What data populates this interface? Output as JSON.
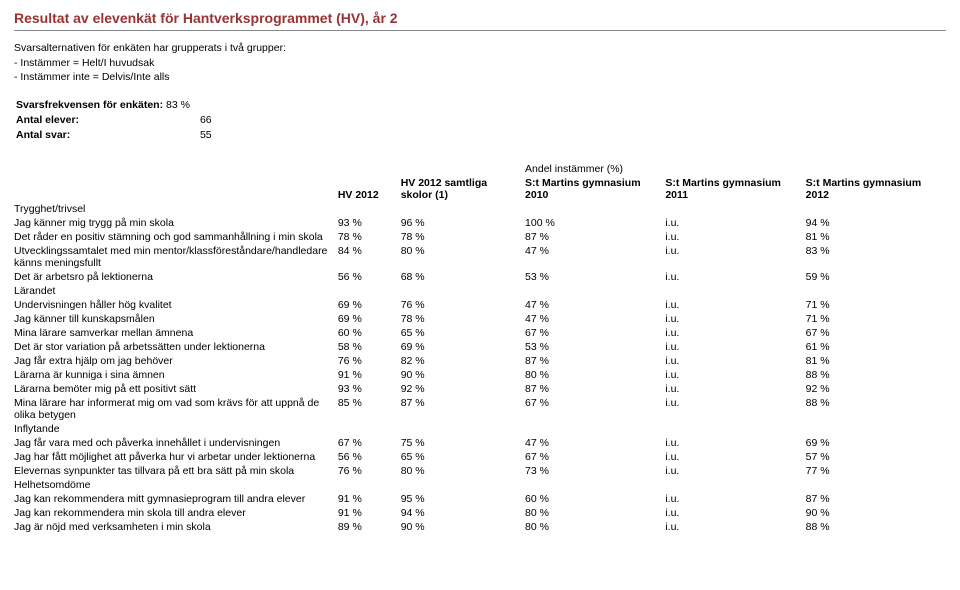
{
  "title": "Resultat av elevenkät för Hantverksprogrammet (HV), år 2",
  "intro": {
    "line1": "Svarsalternativen för enkäten har grupperats i två grupper:",
    "line2": "- Instämmer = Helt/I huvudsak",
    "line3": "- Instämmer inte = Delvis/Inte alls"
  },
  "stats": {
    "resp_label": "Svarsfrekvensen för enkäten:",
    "resp_val": "83 %",
    "elever_label": "Antal elever:",
    "elever_val": "66",
    "svar_label": "Antal svar:",
    "svar_val": "55"
  },
  "table": {
    "super_header": "Andel instämmer (%)",
    "columns": [
      "HV 2012",
      "HV 2012 samtliga skolor (1)",
      "S:t Martins gymnasium 2010",
      "S:t Martins gymnasium 2011",
      "S:t Martins gymnasium 2012"
    ],
    "sections": [
      {
        "title": "Trygghet/trivsel",
        "rows": [
          {
            "label": "Jag känner mig trygg på min skola",
            "v": [
              "93 %",
              "96 %",
              "100 %",
              "i.u.",
              "94 %"
            ]
          },
          {
            "label": "Det råder en positiv stämning och god sammanhållning i min skola",
            "v": [
              "78 %",
              "78 %",
              "87 %",
              "i.u.",
              "81 %"
            ]
          },
          {
            "label": "Utvecklingssamtalet med min mentor/klassföreståndare/handledare känns meningsfullt",
            "v": [
              "84 %",
              "80 %",
              "47 %",
              "i.u.",
              "83 %"
            ]
          },
          {
            "label": "Det är arbetsro på lektionerna",
            "v": [
              "56 %",
              "68 %",
              "53 %",
              "i.u.",
              "59 %"
            ]
          }
        ]
      },
      {
        "title": "Lärandet",
        "rows": [
          {
            "label": "Undervisningen håller hög kvalitet",
            "v": [
              "69 %",
              "76 %",
              "47 %",
              "i.u.",
              "71 %"
            ]
          },
          {
            "label": "Jag känner till kunskapsmålen",
            "v": [
              "69 %",
              "78 %",
              "47 %",
              "i.u.",
              "71 %"
            ]
          },
          {
            "label": "Mina lärare samverkar mellan ämnena",
            "v": [
              "60 %",
              "65 %",
              "67 %",
              "i.u.",
              "67 %"
            ]
          },
          {
            "label": "Det är stor variation på arbetssätten under lektionerna",
            "v": [
              "58 %",
              "69 %",
              "53 %",
              "i.u.",
              "61 %"
            ]
          },
          {
            "label": "Jag får extra hjälp om jag behöver",
            "v": [
              "76 %",
              "82 %",
              "87 %",
              "i.u.",
              "81 %"
            ]
          },
          {
            "label": "Lärarna är kunniga i sina ämnen",
            "v": [
              "91 %",
              "90 %",
              "80 %",
              "i.u.",
              "88 %"
            ]
          },
          {
            "label": "Lärarna bemöter mig på ett positivt sätt",
            "v": [
              "93 %",
              "92 %",
              "87 %",
              "i.u.",
              "92 %"
            ]
          },
          {
            "label": "Mina lärare har informerat mig om vad som krävs för att uppnå de olika betygen",
            "v": [
              "85 %",
              "87 %",
              "67 %",
              "i.u.",
              "88 %"
            ]
          }
        ]
      },
      {
        "title": "Inflytande",
        "rows": [
          {
            "label": "Jag får vara med och påverka innehållet i undervisningen",
            "v": [
              "67 %",
              "75 %",
              "47 %",
              "i.u.",
              "69 %"
            ]
          },
          {
            "label": "Jag har fått möjlighet att påverka hur vi arbetar under lektionerna",
            "v": [
              "56 %",
              "65 %",
              "67 %",
              "i.u.",
              "57 %"
            ]
          },
          {
            "label": "Elevernas synpunkter tas tillvara på ett bra sätt på min skola",
            "v": [
              "76 %",
              "80 %",
              "73 %",
              "i.u.",
              "77 %"
            ]
          }
        ]
      },
      {
        "title": "Helhetsomdöme",
        "rows": [
          {
            "label": "Jag kan rekommendera mitt gymnasieprogram till andra elever",
            "v": [
              "91 %",
              "95 %",
              "60 %",
              "i.u.",
              "87 %"
            ]
          },
          {
            "label": "Jag kan rekommendera min skola till andra elever",
            "v": [
              "91 %",
              "94 %",
              "80 %",
              "i.u.",
              "90 %"
            ]
          },
          {
            "label": "Jag är nöjd med verksamheten i min skola",
            "v": [
              "89 %",
              "90 %",
              "80 %",
              "i.u.",
              "88 %"
            ]
          }
        ]
      }
    ]
  }
}
